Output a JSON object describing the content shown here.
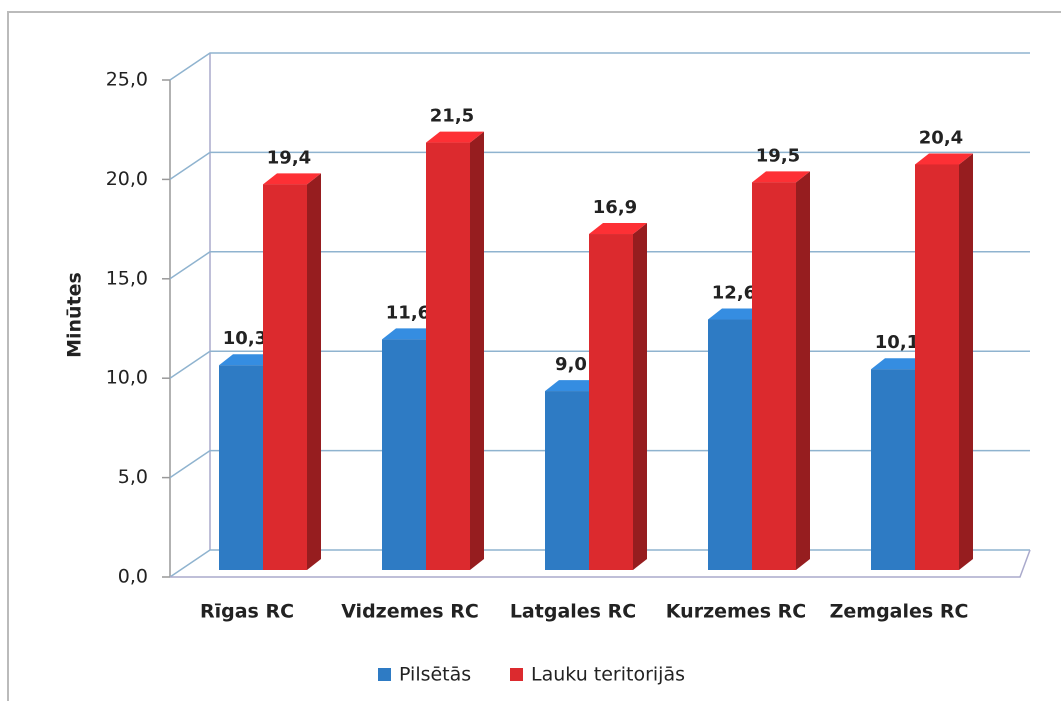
{
  "chart_data": {
    "type": "bar3d",
    "y_label": "Minūtes",
    "categories": [
      "Rīgas RC",
      "Vidzemes RC",
      "Latgales RC",
      "Kurzemes RC",
      "Zemgales RC"
    ],
    "series": [
      {
        "name": "Pilsētās",
        "color": "#2e7bc4",
        "values": [
          10.3,
          11.6,
          9.0,
          12.6,
          10.1
        ],
        "value_labels": [
          "10,3",
          "11,6",
          "9,0",
          "12,6",
          "10,1"
        ]
      },
      {
        "name": "Lauku teritorijās",
        "color": "#dc2a2e",
        "values": [
          19.4,
          21.5,
          16.9,
          19.5,
          20.4
        ],
        "value_labels": [
          "19,4",
          "21,5",
          "16,9",
          "19,5",
          "20,4"
        ]
      }
    ],
    "ylim": [
      0,
      25
    ],
    "yticks": [
      {
        "value": 0,
        "label": "0,0"
      },
      {
        "value": 5,
        "label": "5,0"
      },
      {
        "value": 10,
        "label": "10,0"
      },
      {
        "value": 15,
        "label": "15,0"
      },
      {
        "value": 20,
        "label": "20,0"
      },
      {
        "value": 25,
        "label": "25,0"
      }
    ],
    "grid": true,
    "legend": "bottom"
  }
}
